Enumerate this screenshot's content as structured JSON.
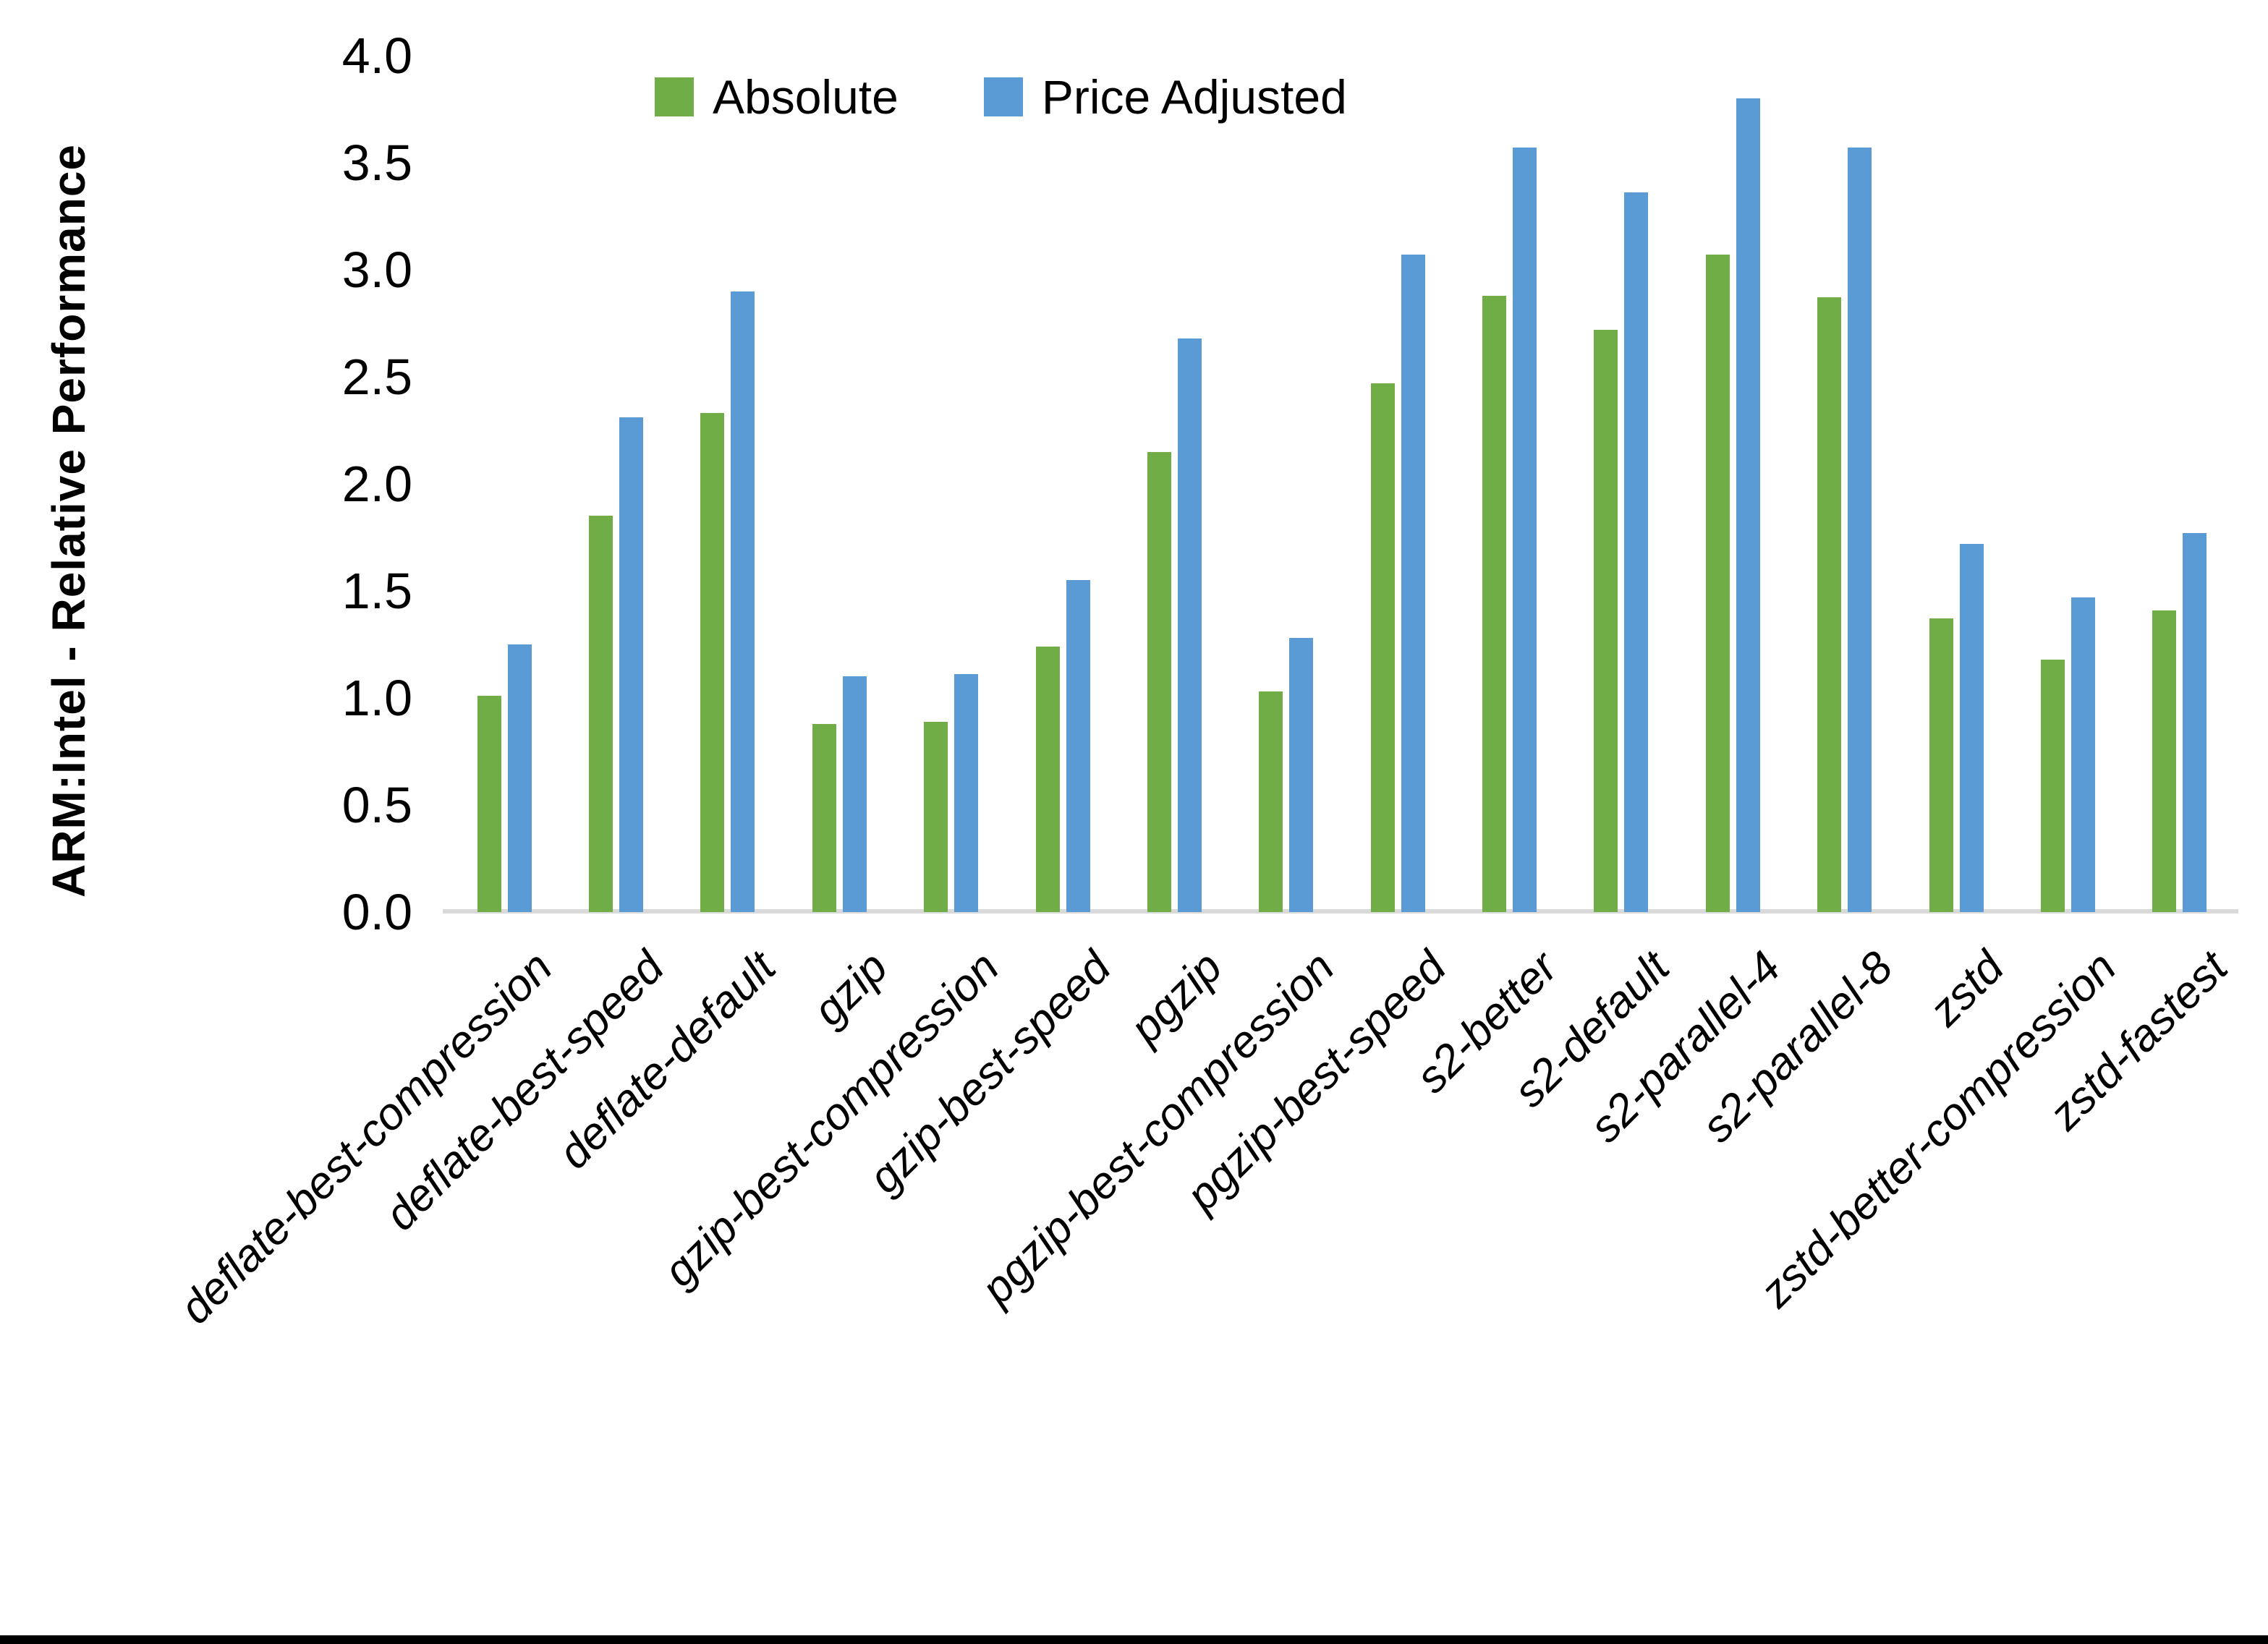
{
  "colors": {
    "absolute_green": "#70AD47",
    "price_adjusted_blue": "#5B9BD5",
    "axis_line_gray": "#D9D9D9",
    "text_black": "#000000",
    "bottom_bar_black": "#000000"
  },
  "chart_data": {
    "type": "bar",
    "title": "",
    "xlabel": "",
    "ylabel": "ARM:Intel - Relative Performance",
    "ylim": [
      0.0,
      4.0
    ],
    "ytick_step": 0.5,
    "ytick_labels": [
      "0.0",
      "0.5",
      "1.0",
      "1.5",
      "2.0",
      "2.5",
      "3.0",
      "3.5",
      "4.0"
    ],
    "grid": false,
    "legend_position": "top-center",
    "legend_entries": [
      "Absolute",
      "Price Adjusted"
    ],
    "categories": [
      "deflate-best-compression",
      "deflate-best-speed",
      "deflate-default",
      "gzip",
      "gzip-best-compression",
      "gzip-best-speed",
      "pgzip",
      "pgzip-best-compression",
      "pgzip-best-speed",
      "s2-better",
      "s2-default",
      "s2-parallel-4",
      "s2-parallel-8",
      "zstd",
      "zstd-better-compression",
      "zstd-fastest"
    ],
    "series": [
      {
        "name": "Absolute",
        "color": "#70AD47",
        "values": [
          1.01,
          1.85,
          2.33,
          0.88,
          0.89,
          1.24,
          2.15,
          1.03,
          2.47,
          2.88,
          2.72,
          3.07,
          2.87,
          1.37,
          1.18,
          1.41
        ]
      },
      {
        "name": "Price Adjusted",
        "color": "#5B9BD5",
        "values": [
          1.25,
          2.31,
          2.9,
          1.1,
          1.11,
          1.55,
          2.68,
          1.28,
          3.07,
          3.57,
          3.36,
          3.8,
          3.57,
          1.72,
          1.47,
          1.77
        ]
      }
    ]
  }
}
